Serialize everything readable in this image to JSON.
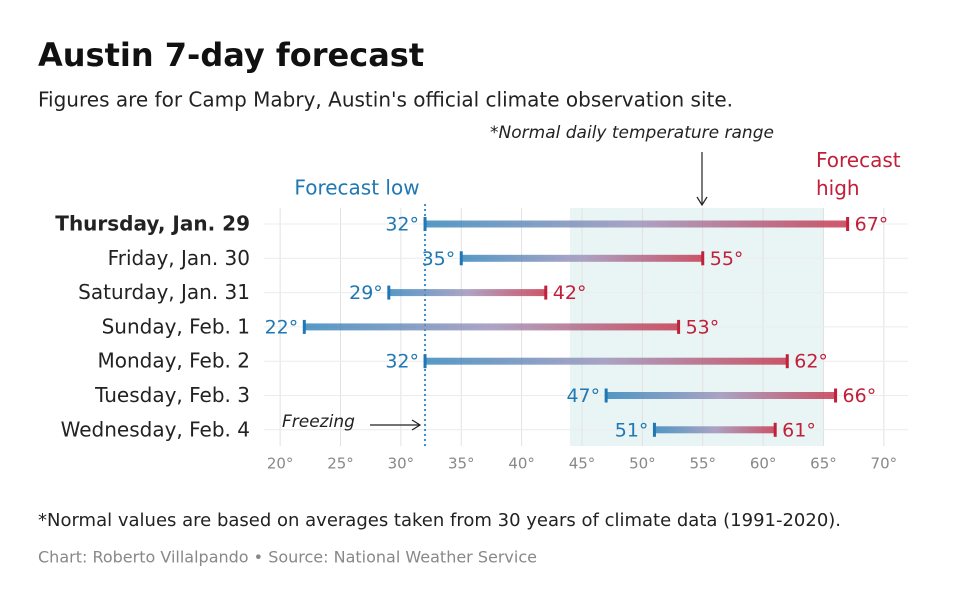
{
  "chart_data": {
    "type": "range",
    "title": "Austin 7-day forecast",
    "subtitle": "Figures are for Camp Mabry, Austin's official climate observation site.",
    "categories": [
      "Thursday, Jan. 29",
      "Friday, Jan. 30",
      "Saturday, Jan. 31",
      "Sunday, Feb. 1",
      "Monday, Feb. 2",
      "Tuesday, Feb. 3",
      "Wednesday, Feb. 4"
    ],
    "highlight_index": 0,
    "series": [
      {
        "name": "Forecast low",
        "color": "#1f78b4",
        "values": [
          32,
          35,
          29,
          22,
          32,
          47,
          51
        ],
        "value_labels": [
          "32°",
          "35°",
          "29°",
          "22°",
          "32°",
          "47°",
          "51°"
        ]
      },
      {
        "name": "Forecast high",
        "color": "#c0203a",
        "values": [
          67,
          55,
          42,
          53,
          62,
          66,
          61
        ],
        "value_labels": [
          "67°",
          "55°",
          "42°",
          "53°",
          "62°",
          "66°",
          "61°"
        ]
      }
    ],
    "xlim": [
      18,
      72
    ],
    "xticks": [
      {
        "value": 20,
        "label": "20°"
      },
      {
        "value": 25,
        "label": "25°"
      },
      {
        "value": 30,
        "label": "30°"
      },
      {
        "value": 35,
        "label": "35°"
      },
      {
        "value": 40,
        "label": "40°"
      },
      {
        "value": 45,
        "label": "45°"
      },
      {
        "value": 50,
        "label": "50°"
      },
      {
        "value": 55,
        "label": "55°"
      },
      {
        "value": 60,
        "label": "60°"
      },
      {
        "value": 65,
        "label": "65°"
      },
      {
        "value": 70,
        "label": "70°"
      }
    ],
    "grid": true,
    "normal_range": {
      "label": "*Normal daily temperature range",
      "values": [
        44,
        65
      ]
    },
    "freezing": {
      "label": "Freezing",
      "value": 32
    },
    "note": "*Normal values are based on averages taken from 30 years of climate data (1991-2020).",
    "source": "Chart: Roberto Villalpando • Source: National Weather Service"
  }
}
